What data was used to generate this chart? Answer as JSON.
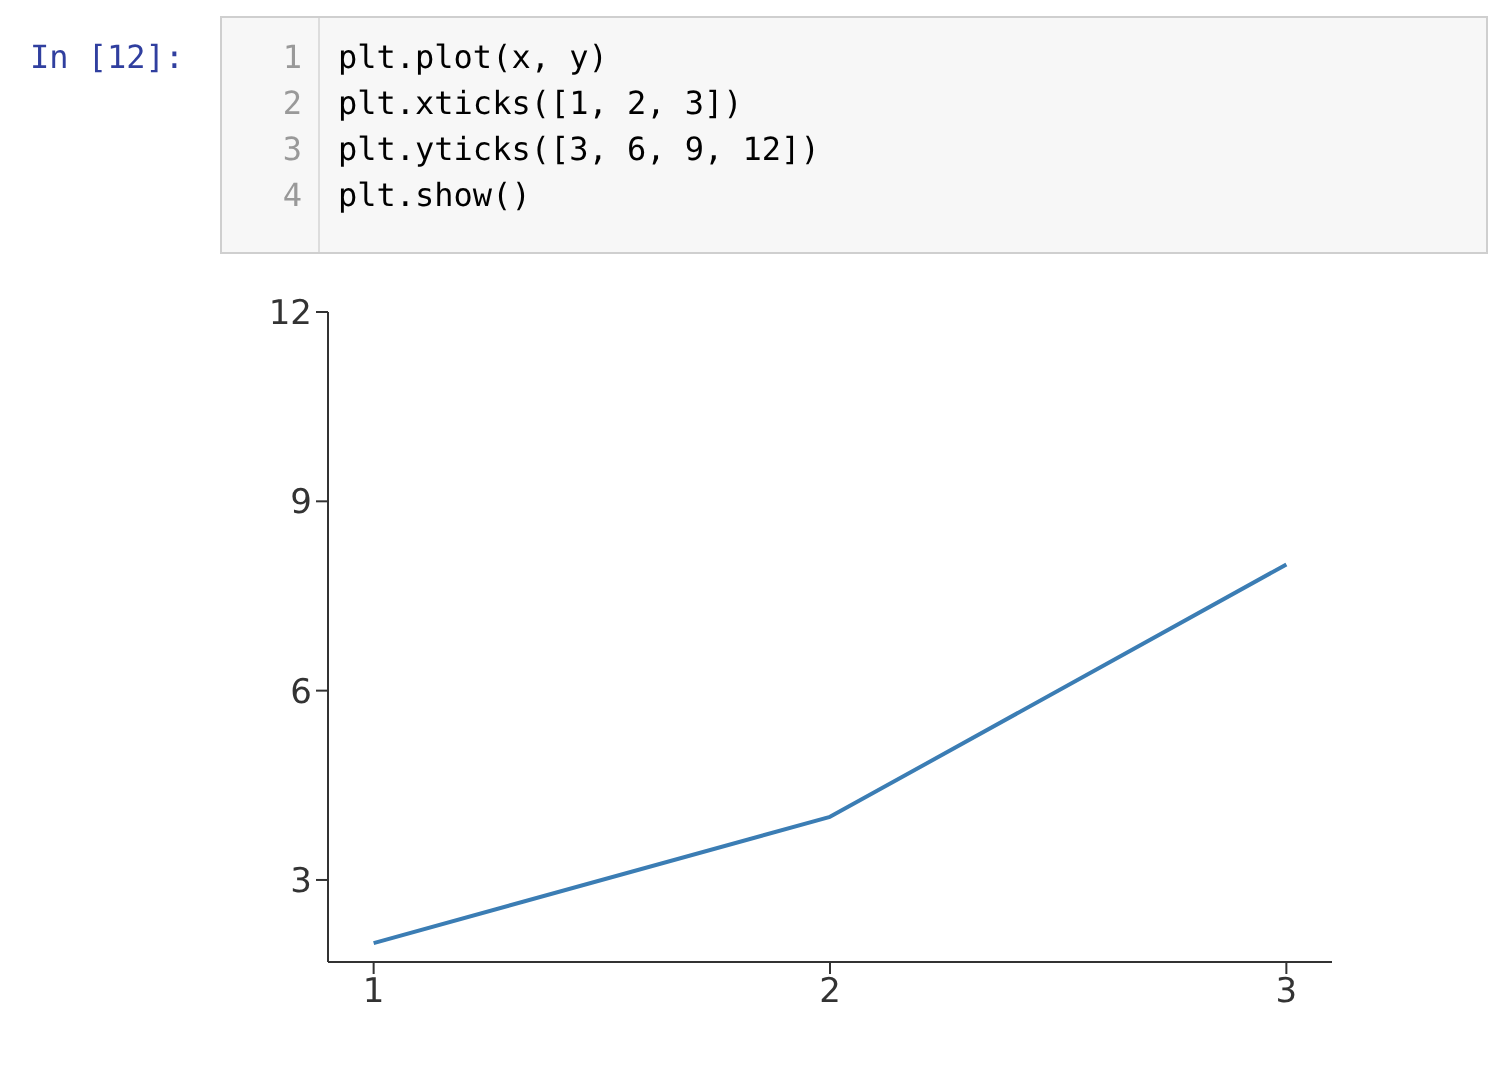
{
  "chart_data": {
    "type": "line",
    "annotations": [
      "In [12]:",
      "1 plt.plot(x, y)",
      "2 plt.xticks([1, 2, 3])",
      "3 plt.yticks([3, 6, 9, 12])",
      "4 plt.show()"
    ],
    "x": [
      1,
      2,
      3
    ],
    "series": [
      {
        "color": "#3b7db4",
        "values": [
          2,
          4,
          8
        ]
      }
    ],
    "xlim": [
      0.9,
      3.1
    ],
    "xticks": [
      1,
      2,
      3
    ],
    "ylim": [
      1.7,
      12
    ],
    "yticks": [
      3,
      6,
      9,
      12
    ],
    "marker": "none",
    "line_style": "solid"
  }
}
